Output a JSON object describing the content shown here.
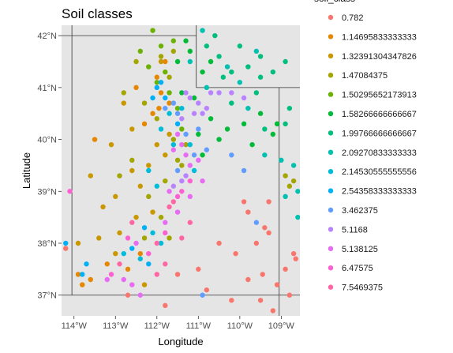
{
  "chart_data": {
    "type": "scatter",
    "title": "Soil classes",
    "xlabel": "Longitude",
    "ylabel": "Latitude",
    "xlim": [
      -114.3,
      -108.55
    ],
    "ylim": [
      36.6,
      42.2
    ],
    "x_ticks": [
      {
        "value": -114,
        "label": "114°W"
      },
      {
        "value": -113,
        "label": "113°W"
      },
      {
        "value": -112,
        "label": "112°W"
      },
      {
        "value": -111,
        "label": "111°W"
      },
      {
        "value": -110,
        "label": "110°W"
      },
      {
        "value": -109,
        "label": "109°W"
      }
    ],
    "y_ticks": [
      {
        "value": 37,
        "label": "37°N"
      },
      {
        "value": 38,
        "label": "38°N"
      },
      {
        "value": 39,
        "label": "39°N"
      },
      {
        "value": 40,
        "label": "40°N"
      },
      {
        "value": 41,
        "label": "41°N"
      },
      {
        "value": 42,
        "label": "42°N"
      }
    ],
    "background": "#e5e5e5",
    "grid": false,
    "legend": {
      "title": "soil_class",
      "placement": "right",
      "entries": [
        {
          "label": "0.782",
          "color": "#F8766D"
        },
        {
          "label": "1.14695833333333",
          "color": "#E58700"
        },
        {
          "label": "1.32391304347826",
          "color": "#C99800"
        },
        {
          "label": "1.47084375",
          "color": "#A3A500"
        },
        {
          "label": "1.50295652173913",
          "color": "#6BB100"
        },
        {
          "label": "1.58266666666667",
          "color": "#00BA38"
        },
        {
          "label": "1.99766666666667",
          "color": "#00BF7D"
        },
        {
          "label": "2.09270833333333",
          "color": "#00C0AF"
        },
        {
          "label": "2.14530555555556",
          "color": "#00BCD8"
        },
        {
          "label": "2.54358333333333",
          "color": "#00B0F6"
        },
        {
          "label": "3.462375",
          "color": "#619CFF"
        },
        {
          "label": "5.1168",
          "color": "#B983FF"
        },
        {
          "label": "5.138125",
          "color": "#E76BF3"
        },
        {
          "label": "6.47575",
          "color": "#FD61D1"
        },
        {
          "label": "7.5469375",
          "color": "#FF67A4"
        }
      ]
    },
    "boundaries": [
      [
        [
          -114.05,
          42.2
        ],
        [
          -114.05,
          37.0
        ]
      ],
      [
        [
          -114.3,
          37.0
        ],
        [
          -108.55,
          37.0
        ]
      ],
      [
        [
          -114.3,
          42.0
        ],
        [
          -111.05,
          42.0
        ]
      ],
      [
        [
          -111.05,
          42.2
        ],
        [
          -111.05,
          41.0
        ]
      ],
      [
        [
          -111.05,
          41.0
        ],
        [
          -108.55,
          41.0
        ]
      ],
      [
        [
          -109.05,
          41.0
        ],
        [
          -109.05,
          36.6
        ]
      ]
    ],
    "series": [
      {
        "color": "#F8766D",
        "points": [
          [
            -109.8,
            38.6
          ],
          [
            -109.4,
            38.3
          ],
          [
            -109.3,
            38.8
          ],
          [
            -109.8,
            37.3
          ],
          [
            -109.5,
            36.9
          ],
          [
            -108.9,
            37.5
          ],
          [
            -109.6,
            38.0
          ],
          [
            -110.1,
            37.8
          ],
          [
            -110.5,
            38.0
          ],
          [
            -111.5,
            37.4
          ],
          [
            -111.0,
            37.5
          ],
          [
            -109.1,
            37.2
          ],
          [
            -108.8,
            37.0
          ],
          [
            -109.3,
            38.2
          ],
          [
            -109.9,
            38.8
          ],
          [
            -111.8,
            36.8
          ],
          [
            -112.7,
            37.0
          ],
          [
            -114.2,
            37.9
          ],
          [
            -108.7,
            37.8
          ],
          [
            -110.8,
            37.1
          ],
          [
            -109.2,
            36.7
          ],
          [
            -110.2,
            36.9
          ],
          [
            -108.65,
            37.7
          ],
          [
            -109.45,
            37.4
          ]
        ]
      },
      {
        "color": "#E58700",
        "points": [
          [
            -112.3,
            40.3
          ],
          [
            -112.1,
            40.5
          ],
          [
            -113.8,
            37.2
          ],
          [
            -113.6,
            37.3
          ],
          [
            -113.2,
            37.6
          ],
          [
            -112.0,
            41.2
          ],
          [
            -111.9,
            40.9
          ],
          [
            -112.4,
            37.8
          ],
          [
            -113.5,
            40.0
          ],
          [
            -111.8,
            41.5
          ],
          [
            -112.7,
            37.5
          ],
          [
            -111.7,
            40.7
          ],
          [
            -113.9,
            37.4
          ],
          [
            -112.5,
            41.0
          ],
          [
            -111.95,
            40.6
          ]
        ]
      },
      {
        "color": "#C99800",
        "points": [
          [
            -112.2,
            39.5
          ],
          [
            -112.5,
            38.5
          ],
          [
            -113.1,
            39.9
          ],
          [
            -112.8,
            40.7
          ],
          [
            -113.0,
            38.9
          ],
          [
            -113.3,
            38.7
          ],
          [
            -111.8,
            39.7
          ],
          [
            -112.4,
            39.1
          ],
          [
            -113.0,
            37.8
          ],
          [
            -112.9,
            38.2
          ],
          [
            -113.6,
            39.3
          ],
          [
            -112.6,
            40.2
          ],
          [
            -112.0,
            39.9
          ],
          [
            -111.7,
            40.1
          ],
          [
            -112.1,
            38.6
          ],
          [
            -113.4,
            38.1
          ],
          [
            -112.3,
            37.2
          ],
          [
            -111.9,
            41.5
          ],
          [
            -113.9,
            38.0
          ],
          [
            -112.6,
            39.4
          ]
        ]
      },
      {
        "color": "#A3A500",
        "points": [
          [
            -111.9,
            41.6
          ],
          [
            -112.3,
            40.7
          ],
          [
            -111.7,
            41.2
          ],
          [
            -112.8,
            40.9
          ],
          [
            -112.0,
            40.4
          ],
          [
            -111.6,
            40.0
          ],
          [
            -111.5,
            39.6
          ],
          [
            -111.8,
            39.2
          ],
          [
            -112.2,
            38.9
          ],
          [
            -112.6,
            39.6
          ],
          [
            -111.4,
            39.5
          ],
          [
            -111.9,
            38.5
          ],
          [
            -108.7,
            39.2
          ],
          [
            -108.8,
            39.1
          ],
          [
            -111.7,
            38.1
          ],
          [
            -112.5,
            41.5
          ],
          [
            -111.6,
            41.7
          ],
          [
            -112.3,
            38.1
          ],
          [
            -112.9,
            39.3
          ],
          [
            -111.3,
            39.9
          ],
          [
            -108.9,
            39.3
          ]
        ]
      },
      {
        "color": "#6BB100",
        "points": [
          [
            -111.9,
            41.8
          ],
          [
            -111.8,
            41.3
          ],
          [
            -112.4,
            41.7
          ],
          [
            -111.6,
            41.9
          ],
          [
            -112.1,
            42.1
          ],
          [
            -111.7,
            40.9
          ],
          [
            -112.0,
            41.1
          ],
          [
            -111.5,
            40.6
          ],
          [
            -112.2,
            41.4
          ],
          [
            -111.4,
            40.2
          ]
        ]
      },
      {
        "color": "#00BA38",
        "points": [
          [
            -111.3,
            41.9
          ],
          [
            -111.2,
            41.7
          ],
          [
            -111.5,
            41.5
          ],
          [
            -111.4,
            40.9
          ],
          [
            -110.9,
            41.3
          ],
          [
            -110.7,
            41.5
          ],
          [
            -111.1,
            40.8
          ],
          [
            -110.3,
            40.2
          ],
          [
            -109.9,
            40.3
          ],
          [
            -110.7,
            40.4
          ],
          [
            -111.0,
            40.1
          ],
          [
            -109.5,
            40.5
          ],
          [
            -109.7,
            39.9
          ],
          [
            -109.2,
            40.1
          ],
          [
            -110.9,
            39.7
          ],
          [
            -110.5,
            40.0
          ],
          [
            -109.1,
            40.3
          ]
        ]
      },
      {
        "color": "#00BF7D",
        "points": [
          [
            -110.5,
            41.6
          ],
          [
            -109.8,
            41.4
          ],
          [
            -109.5,
            41.6
          ],
          [
            -109.6,
            40.9
          ],
          [
            -110.0,
            41.8
          ],
          [
            -110.8,
            41.8
          ],
          [
            -110.4,
            41.2
          ],
          [
            -109.4,
            40.2
          ],
          [
            -110.2,
            40.7
          ],
          [
            -109.5,
            41.2
          ],
          [
            -109.2,
            41.3
          ],
          [
            -108.9,
            41.5
          ],
          [
            -108.8,
            40.6
          ],
          [
            -108.9,
            40.3
          ],
          [
            -110.2,
            41.3
          ],
          [
            -110.6,
            42.0
          ]
        ]
      },
      {
        "color": "#00C0AF",
        "points": [
          [
            -111.2,
            41.5
          ],
          [
            -110.9,
            42.1
          ],
          [
            -110.3,
            41.4
          ],
          [
            -109.8,
            40.6
          ],
          [
            -109.4,
            39.7
          ],
          [
            -109.0,
            39.6
          ],
          [
            -108.7,
            39.5
          ],
          [
            -110.0,
            41.1
          ],
          [
            -108.9,
            38.9
          ],
          [
            -109.6,
            41.7
          ],
          [
            -110.8,
            41.0
          ],
          [
            -108.6,
            38.5
          ],
          [
            -108.6,
            39.0
          ]
        ]
      },
      {
        "color": "#00BCD8",
        "points": [
          [
            -111.4,
            40.6
          ],
          [
            -111.7,
            40.5
          ],
          [
            -112.2,
            39.4
          ],
          [
            -112.1,
            38.2
          ],
          [
            -111.9,
            38.0
          ],
          [
            -112.4,
            37.7
          ],
          [
            -112.8,
            37.8
          ],
          [
            -111.9,
            40.2
          ],
          [
            -111.6,
            39.9
          ],
          [
            -111.1,
            39.4
          ],
          [
            -111.2,
            39.9
          ],
          [
            -112.0,
            39.1
          ]
        ]
      },
      {
        "color": "#00B0F6",
        "points": [
          [
            -112.1,
            40.8
          ],
          [
            -112.0,
            41.0
          ],
          [
            -111.9,
            41.1
          ],
          [
            -111.8,
            40.8
          ],
          [
            -111.5,
            40.3
          ],
          [
            -114.2,
            38.0
          ],
          [
            -113.8,
            37.4
          ],
          [
            -113.7,
            37.6
          ],
          [
            -112.2,
            37.6
          ],
          [
            -112.6,
            37.9
          ],
          [
            -112.3,
            38.3
          ]
        ]
      },
      {
        "color": "#619CFF",
        "points": [
          [
            -111.8,
            40.6
          ],
          [
            -111.6,
            40.7
          ],
          [
            -111.5,
            40.5
          ],
          [
            -111.3,
            40.1
          ],
          [
            -111.0,
            40.2
          ],
          [
            -110.8,
            39.8
          ],
          [
            -111.1,
            39.7
          ],
          [
            -111.5,
            39.4
          ],
          [
            -110.9,
            37.0
          ],
          [
            -109.6,
            38.4
          ],
          [
            -109.9,
            39.4
          ],
          [
            -110.2,
            39.7
          ]
        ]
      },
      {
        "color": "#B983FF",
        "points": [
          [
            -111.3,
            40.9
          ],
          [
            -111.2,
            40.8
          ],
          [
            -111.0,
            40.7
          ],
          [
            -110.8,
            40.6
          ],
          [
            -110.7,
            40.9
          ],
          [
            -110.5,
            40.9
          ],
          [
            -110.2,
            40.9
          ],
          [
            -109.9,
            40.8
          ],
          [
            -110.9,
            40.5
          ],
          [
            -111.1,
            40.5
          ],
          [
            -111.4,
            40.4
          ],
          [
            -111.3,
            39.3
          ],
          [
            -111.4,
            39.2
          ],
          [
            -111.6,
            39.1
          ]
        ]
      },
      {
        "color": "#E76BF3",
        "points": [
          [
            -111.5,
            40.1
          ],
          [
            -111.6,
            39.8
          ],
          [
            -111.4,
            39.9
          ],
          [
            -111.3,
            39.7
          ],
          [
            -111.2,
            39.5
          ],
          [
            -111.0,
            39.6
          ],
          [
            -110.9,
            39.2
          ],
          [
            -111.2,
            38.9
          ],
          [
            -111.5,
            38.6
          ],
          [
            -111.8,
            38.4
          ],
          [
            -112.5,
            38.0
          ],
          [
            -112.8,
            37.3
          ],
          [
            -113.2,
            37.3
          ],
          [
            -112.4,
            37.0
          ],
          [
            -112.6,
            37.2
          ],
          [
            -111.7,
            39.0
          ]
        ]
      },
      {
        "color": "#FD61D1",
        "points": [
          [
            -111.4,
            39.0
          ],
          [
            -111.8,
            38.2
          ],
          [
            -112.7,
            38.1
          ],
          [
            -113.1,
            37.4
          ],
          [
            -112.2,
            37.8
          ],
          [
            -111.5,
            38.9
          ],
          [
            -111.2,
            39.2
          ],
          [
            -114.1,
            39.0
          ]
        ]
      },
      {
        "color": "#FF67A4",
        "points": [
          [
            -111.6,
            38.8
          ],
          [
            -111.8,
            37.6
          ],
          [
            -112.0,
            37.4
          ],
          [
            -111.4,
            38.1
          ],
          [
            -112.0,
            38.0
          ],
          [
            -111.2,
            38.4
          ],
          [
            -112.6,
            38.4
          ],
          [
            -111.7,
            38.7
          ],
          [
            -112.9,
            37.6
          ]
        ]
      }
    ]
  }
}
